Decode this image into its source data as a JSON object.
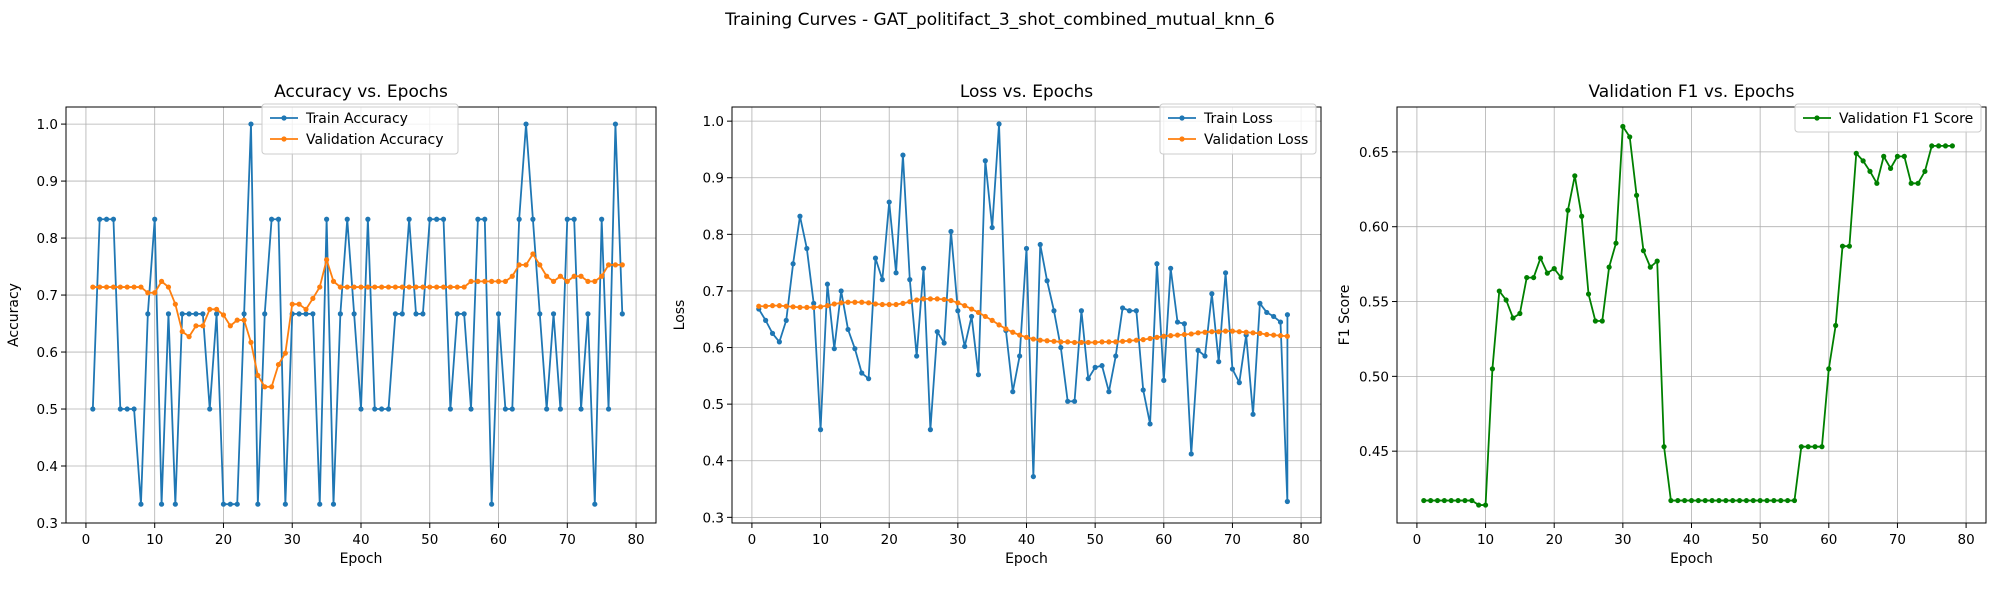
{
  "suptitle": "Training Curves - GAT_politifact_3_shot_combined_mutual_knn_6",
  "chart_data": [
    {
      "type": "line",
      "title": "Accuracy vs. Epochs",
      "xlabel": "Epoch",
      "ylabel": "Accuracy",
      "xlim": [
        -2.9,
        82.9
      ],
      "ylim": [
        0.3,
        1.03
      ],
      "xticks": [
        0,
        10,
        20,
        30,
        40,
        50,
        60,
        70,
        80
      ],
      "yticks": [
        0.3,
        0.4,
        0.5,
        0.6,
        0.7,
        0.8,
        0.9,
        1.0
      ],
      "ytick_labels": [
        "0.3",
        "0.4",
        "0.5",
        "0.6",
        "0.7",
        "0.8",
        "0.9",
        "1.0"
      ],
      "grid": true,
      "legend": "upper-center",
      "x": [
        1,
        2,
        3,
        4,
        5,
        6,
        7,
        8,
        9,
        10,
        11,
        12,
        13,
        14,
        15,
        16,
        17,
        18,
        19,
        20,
        21,
        22,
        23,
        24,
        25,
        26,
        27,
        28,
        29,
        30,
        31,
        32,
        33,
        34,
        35,
        36,
        37,
        38,
        39,
        40,
        41,
        42,
        43,
        44,
        45,
        46,
        47,
        48,
        49,
        50,
        51,
        52,
        53,
        54,
        55,
        56,
        57,
        58,
        59,
        60,
        61,
        62,
        63,
        64,
        65,
        66,
        67,
        68,
        69,
        70,
        71,
        72,
        73,
        74,
        75,
        76,
        77,
        78
      ],
      "series": [
        {
          "name": "Train Accuracy",
          "color": "#1f77b4",
          "values": [
            0.5,
            0.833,
            0.833,
            0.833,
            0.5,
            0.5,
            0.5,
            0.333,
            0.667,
            0.833,
            0.333,
            0.667,
            0.333,
            0.667,
            0.667,
            0.667,
            0.667,
            0.5,
            0.667,
            0.333,
            0.333,
            0.333,
            0.667,
            1.0,
            0.333,
            0.667,
            0.833,
            0.833,
            0.333,
            0.667,
            0.667,
            0.667,
            0.667,
            0.333,
            0.833,
            0.333,
            0.667,
            0.833,
            0.667,
            0.5,
            0.833,
            0.5,
            0.5,
            0.5,
            0.667,
            0.667,
            0.833,
            0.667,
            0.667,
            0.833,
            0.833,
            0.833,
            0.5,
            0.667,
            0.667,
            0.5,
            0.833,
            0.833,
            0.333,
            0.667,
            0.5,
            0.5,
            0.833,
            1.0,
            0.833,
            0.667,
            0.5,
            0.667,
            0.5,
            0.833,
            0.833,
            0.5,
            0.667,
            0.333,
            0.833,
            0.5,
            1.0,
            0.667
          ]
        },
        {
          "name": "Validation Accuracy",
          "color": "#ff7f0e",
          "values": [
            0.714,
            0.714,
            0.714,
            0.714,
            0.714,
            0.714,
            0.714,
            0.714,
            0.704,
            0.704,
            0.724,
            0.714,
            0.684,
            0.636,
            0.627,
            0.646,
            0.646,
            0.675,
            0.675,
            0.665,
            0.646,
            0.656,
            0.656,
            0.617,
            0.559,
            0.539,
            0.539,
            0.578,
            0.598,
            0.684,
            0.684,
            0.675,
            0.694,
            0.714,
            0.762,
            0.724,
            0.714,
            0.714,
            0.714,
            0.714,
            0.714,
            0.714,
            0.714,
            0.714,
            0.714,
            0.714,
            0.714,
            0.714,
            0.714,
            0.714,
            0.714,
            0.714,
            0.714,
            0.714,
            0.714,
            0.724,
            0.724,
            0.724,
            0.724,
            0.724,
            0.724,
            0.733,
            0.753,
            0.753,
            0.772,
            0.753,
            0.733,
            0.724,
            0.733,
            0.724,
            0.733,
            0.733,
            0.724,
            0.724,
            0.733,
            0.753,
            0.753,
            0.753
          ]
        }
      ]
    },
    {
      "type": "line",
      "title": "Loss vs. Epochs",
      "xlabel": "Epoch",
      "ylabel": "Loss",
      "xlim": [
        -2.9,
        82.9
      ],
      "ylim": [
        0.29,
        1.025
      ],
      "xticks": [
        0,
        10,
        20,
        30,
        40,
        50,
        60,
        70,
        80
      ],
      "yticks": [
        0.3,
        0.4,
        0.5,
        0.6,
        0.7,
        0.8,
        0.9,
        1.0
      ],
      "ytick_labels": [
        "0.3",
        "0.4",
        "0.5",
        "0.6",
        "0.7",
        "0.8",
        "0.9",
        "1.0"
      ],
      "grid": true,
      "legend": "upper-right",
      "x": [
        1,
        2,
        3,
        4,
        5,
        6,
        7,
        8,
        9,
        10,
        11,
        12,
        13,
        14,
        15,
        16,
        17,
        18,
        19,
        20,
        21,
        22,
        23,
        24,
        25,
        26,
        27,
        28,
        29,
        30,
        31,
        32,
        33,
        34,
        35,
        36,
        37,
        38,
        39,
        40,
        41,
        42,
        43,
        44,
        45,
        46,
        47,
        48,
        49,
        50,
        51,
        52,
        53,
        54,
        55,
        56,
        57,
        58,
        59,
        60,
        61,
        62,
        63,
        64,
        65,
        66,
        67,
        68,
        69,
        70,
        71,
        72,
        73,
        74,
        75,
        76,
        77,
        78
      ],
      "series": [
        {
          "name": "Train Loss",
          "color": "#1f77b4",
          "values": [
            0.668,
            0.648,
            0.625,
            0.61,
            0.648,
            0.748,
            0.832,
            0.775,
            0.678,
            0.455,
            0.712,
            0.598,
            0.7,
            0.632,
            0.598,
            0.555,
            0.545,
            0.758,
            0.72,
            0.857,
            0.732,
            0.94,
            0.72,
            0.585,
            0.74,
            0.455,
            0.628,
            0.608,
            0.805,
            0.665,
            0.602,
            0.655,
            0.552,
            0.93,
            0.812,
            0.995,
            0.63,
            0.522,
            0.585,
            0.775,
            0.372,
            0.782,
            0.718,
            0.665,
            0.6,
            0.505,
            0.505,
            0.665,
            0.545,
            0.565,
            0.568,
            0.522,
            0.585,
            0.67,
            0.665,
            0.665,
            0.525,
            0.465,
            0.748,
            0.542,
            0.74,
            0.645,
            0.642,
            0.412,
            0.595,
            0.585,
            0.695,
            0.575,
            0.732,
            0.562,
            0.538,
            0.622,
            0.482,
            0.678,
            0.662,
            0.655,
            0.645,
            0.328
          ],
          "tail": [
            0.658
          ]
        },
        {
          "name": "Validation Loss",
          "color": "#ff7f0e",
          "values": [
            0.673,
            0.673,
            0.674,
            0.674,
            0.673,
            0.672,
            0.671,
            0.671,
            0.671,
            0.672,
            0.674,
            0.677,
            0.679,
            0.68,
            0.68,
            0.68,
            0.679,
            0.677,
            0.676,
            0.676,
            0.676,
            0.678,
            0.681,
            0.684,
            0.686,
            0.686,
            0.686,
            0.685,
            0.683,
            0.679,
            0.674,
            0.668,
            0.662,
            0.655,
            0.648,
            0.64,
            0.633,
            0.627,
            0.622,
            0.618,
            0.615,
            0.613,
            0.612,
            0.611,
            0.61,
            0.61,
            0.609,
            0.609,
            0.609,
            0.609,
            0.61,
            0.61,
            0.61,
            0.611,
            0.612,
            0.613,
            0.614,
            0.616,
            0.618,
            0.62,
            0.621,
            0.622,
            0.623,
            0.624,
            0.626,
            0.627,
            0.628,
            0.628,
            0.629,
            0.629,
            0.628,
            0.627,
            0.626,
            0.625,
            0.623,
            0.622,
            0.621,
            0.62
          ]
        }
      ]
    },
    {
      "type": "line",
      "title": "Validation F1 vs. Epochs",
      "xlabel": "Epoch",
      "ylabel": "F1 Score",
      "xlim": [
        -2.9,
        82.9
      ],
      "ylim": [
        0.402,
        0.68
      ],
      "xticks": [
        0,
        10,
        20,
        30,
        40,
        50,
        60,
        70,
        80
      ],
      "yticks": [
        0.45,
        0.5,
        0.55,
        0.6,
        0.65
      ],
      "ytick_labels": [
        "0.45",
        "0.50",
        "0.55",
        "0.60",
        "0.65"
      ],
      "grid": true,
      "legend": "upper-right",
      "x": [
        1,
        2,
        3,
        4,
        5,
        6,
        7,
        8,
        9,
        10,
        11,
        12,
        13,
        14,
        15,
        16,
        17,
        18,
        19,
        20,
        21,
        22,
        23,
        24,
        25,
        26,
        27,
        28,
        29,
        30,
        31,
        32,
        33,
        34,
        35,
        36,
        37,
        38,
        39,
        40,
        41,
        42,
        43,
        44,
        45,
        46,
        47,
        48,
        49,
        50,
        51,
        52,
        53,
        54,
        55,
        56,
        57,
        58,
        59,
        60,
        61,
        62,
        63,
        64,
        65,
        66,
        67,
        68,
        69,
        70,
        71,
        72,
        73,
        74,
        75,
        76,
        77,
        78
      ],
      "series": [
        {
          "name": "Validation F1 Score",
          "color": "#008000",
          "values": [
            0.417,
            0.417,
            0.417,
            0.417,
            0.417,
            0.417,
            0.417,
            0.417,
            0.414,
            0.414,
            0.505,
            0.557,
            0.551,
            0.539,
            0.542,
            0.566,
            0.566,
            0.579,
            0.569,
            0.572,
            0.566,
            0.611,
            0.634,
            0.607,
            0.555,
            0.537,
            0.537,
            0.573,
            0.589,
            0.667,
            0.66,
            0.621,
            0.584,
            0.573,
            0.577,
            0.453,
            0.417,
            0.417,
            0.417,
            0.417,
            0.417,
            0.417,
            0.417,
            0.417,
            0.417,
            0.417,
            0.417,
            0.417,
            0.417,
            0.417,
            0.417,
            0.417,
            0.417,
            0.417,
            0.417,
            0.453,
            0.453,
            0.453,
            0.453,
            0.505,
            0.534,
            0.587,
            0.587,
            0.649,
            0.644,
            0.637,
            0.629,
            0.647,
            0.639,
            0.647,
            0.647,
            0.629,
            0.629,
            0.637,
            0.654,
            0.654,
            0.654,
            0.654
          ]
        }
      ]
    }
  ]
}
